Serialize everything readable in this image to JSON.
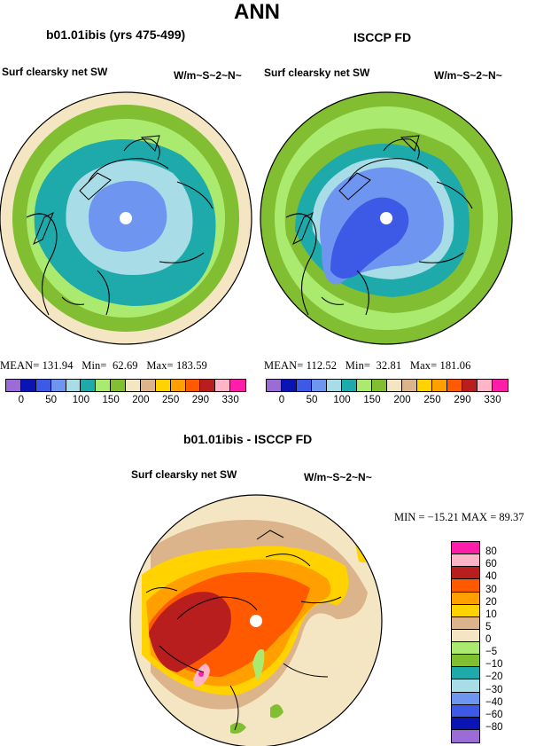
{
  "title": "ANN",
  "panel_left": {
    "title": "b01.01ibis (yrs 475-499)",
    "field": "Surf clearsky net SW",
    "units": "W/m~S~2~N~",
    "mean_label": "MEAN=",
    "mean": "131.94",
    "min_label": "Min=",
    "min": "62.69",
    "max_label": "Max=",
    "max": "183.59"
  },
  "panel_right": {
    "title": "ISCCP FD",
    "field": "Surf clearsky net SW",
    "units": "W/m~S~2~N~",
    "mean_label": "MEAN=",
    "mean": "112.52",
    "min_label": "Min=",
    "min": "32.81",
    "max_label": "Max=",
    "max": "181.06"
  },
  "panel_diff": {
    "title": "b01.01ibis - ISCCP FD",
    "field": "Surf clearsky net SW",
    "units": "W/m~S~2~N~",
    "minmax": "MIN = −15.21  MAX =  89.37"
  },
  "top_colorbar": {
    "labels": [
      "0",
      "50",
      "100",
      "150",
      "200",
      "250",
      "290",
      "330"
    ],
    "colors": [
      "#9b6bd6",
      "#0a14b4",
      "#3c5ae6",
      "#6e96f0",
      "#a8dce6",
      "#1eaaaa",
      "#aaea6e",
      "#82be32",
      "#f5e6c3",
      "#dcb48c",
      "#ffd200",
      "#ffa000",
      "#ff5a00",
      "#b91e1e",
      "#ffb4c8",
      "#ff1eaa"
    ]
  },
  "diff_colorbar": {
    "labels": [
      "80",
      "60",
      "40",
      "30",
      "20",
      "10",
      "5",
      "0",
      "−5",
      "−10",
      "−20",
      "−30",
      "−40",
      "−60",
      "−80"
    ],
    "colors": [
      "#ff1eaa",
      "#ffb4c8",
      "#b91e1e",
      "#ff5a00",
      "#ffa000",
      "#ffd200",
      "#dcb48c",
      "#f5e6c3",
      "#aaea6e",
      "#82be32",
      "#1eaaaa",
      "#a8dce6",
      "#6e96f0",
      "#3c5ae6",
      "#0a14b4",
      "#9b6bd6"
    ]
  }
}
